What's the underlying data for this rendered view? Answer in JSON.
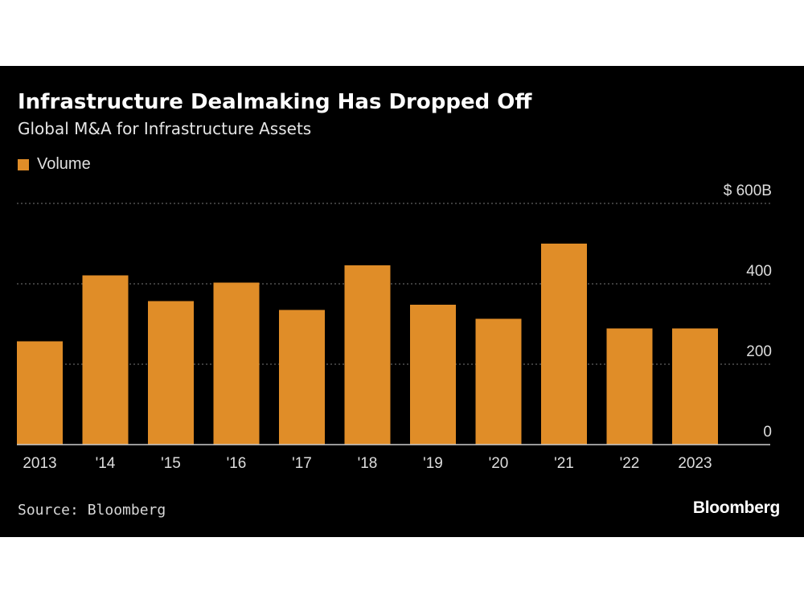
{
  "chart_data": {
    "type": "bar",
    "title": "Infrastructure Dealmaking Has Dropped Off",
    "subtitle": "Global M&A for Infrastructure Assets",
    "categories": [
      "2013",
      "'14",
      "'15",
      "'16",
      "'17",
      "'18",
      "'19",
      "'20",
      "'21",
      "'22",
      "2023"
    ],
    "series": [
      {
        "name": "Volume",
        "values": [
          257,
          421,
          357,
          403,
          335,
          446,
          348,
          313,
          500,
          289,
          289
        ]
      }
    ],
    "ylim": [
      0,
      600
    ],
    "yticks": [
      0,
      200,
      400,
      600
    ],
    "ytick_labels": [
      "0",
      "200",
      "400",
      "$ 600B"
    ],
    "xlabel": "",
    "ylabel": "",
    "grid": true,
    "legend_position": "top-left"
  },
  "footer": {
    "source": "Source: Bloomberg",
    "brand": "Bloomberg"
  },
  "colors": {
    "background": "#000000",
    "bar": "#E08D28",
    "grid": "#777777",
    "axis": "#cccccc",
    "text": "#dddddd"
  }
}
